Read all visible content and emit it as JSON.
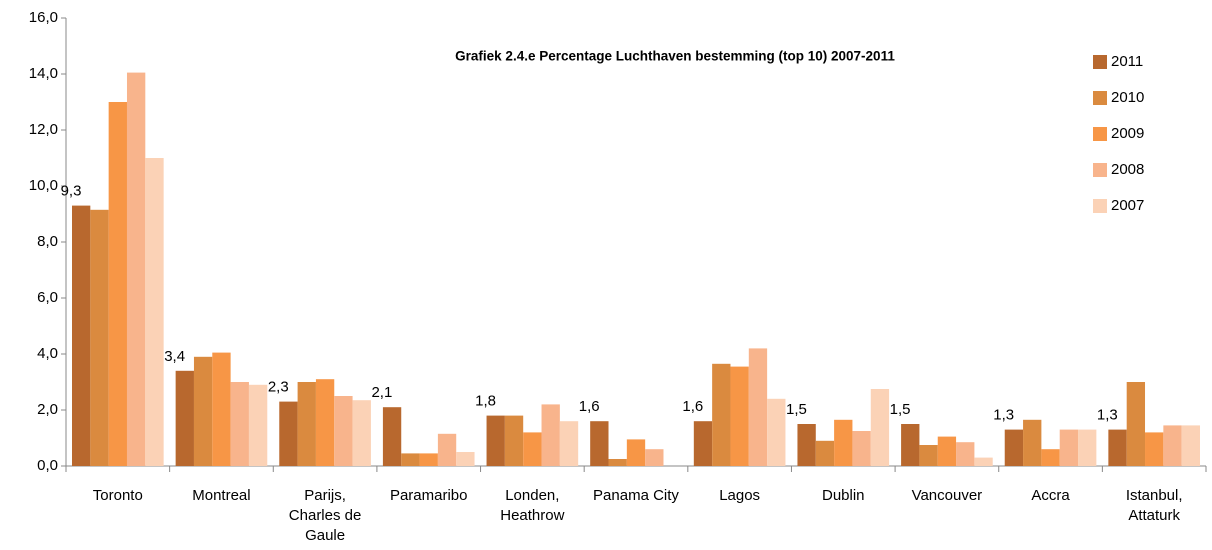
{
  "chart_data": {
    "type": "bar",
    "title": "Grafiek 2.4.e Percentage Luchthaven bestemming (top 10)  2007-2011",
    "categories": [
      "Toronto",
      "Montreal",
      "Parijs, Charles de Gaule",
      "Paramaribo",
      "Londen, Heathrow",
      "Panama City",
      "Lagos",
      "Dublin",
      "Vancouver",
      "Accra",
      "Istanbul, Attaturk"
    ],
    "series": [
      {
        "name": "2011",
        "color": "#b8682e",
        "values": [
          9.3,
          3.4,
          2.3,
          2.1,
          1.8,
          1.6,
          1.6,
          1.5,
          1.5,
          1.3,
          1.3
        ],
        "value_labels": [
          "9,3",
          "3,4",
          "2,3",
          "2,1",
          "1,8",
          "1,6",
          "1,6",
          "1,5",
          "1,5",
          "1,3",
          "1,3"
        ]
      },
      {
        "name": "2010",
        "color": "#da8a3f",
        "values": [
          9.15,
          3.9,
          3.0,
          0.45,
          1.8,
          0.25,
          3.65,
          0.9,
          0.75,
          1.65,
          3.0
        ]
      },
      {
        "name": "2009",
        "color": "#f79646",
        "values": [
          13.0,
          4.05,
          3.1,
          0.45,
          1.2,
          0.95,
          3.55,
          1.65,
          1.05,
          0.6,
          1.2
        ]
      },
      {
        "name": "2008",
        "color": "#f8b48c",
        "values": [
          14.05,
          3.0,
          2.5,
          1.15,
          2.2,
          0.6,
          4.2,
          1.25,
          0.85,
          1.3,
          1.45
        ]
      },
      {
        "name": "2007",
        "color": "#fbd2b6",
        "values": [
          11.0,
          2.9,
          2.35,
          0.5,
          1.6,
          null,
          2.4,
          2.75,
          0.3,
          1.3,
          1.45
        ]
      }
    ],
    "ylim": [
      0,
      16
    ],
    "yticks": [
      {
        "value": 0,
        "label": "0,0"
      },
      {
        "value": 2,
        "label": "2,0"
      },
      {
        "value": 4,
        "label": "4,0"
      },
      {
        "value": 6,
        "label": "6,0"
      },
      {
        "value": 8,
        "label": "8,0"
      },
      {
        "value": 10,
        "label": "10,0"
      },
      {
        "value": 12,
        "label": "12,0"
      },
      {
        "value": 14,
        "label": "14,0"
      },
      {
        "value": 16,
        "label": "16,0"
      }
    ],
    "grid": false,
    "legend": "right"
  }
}
